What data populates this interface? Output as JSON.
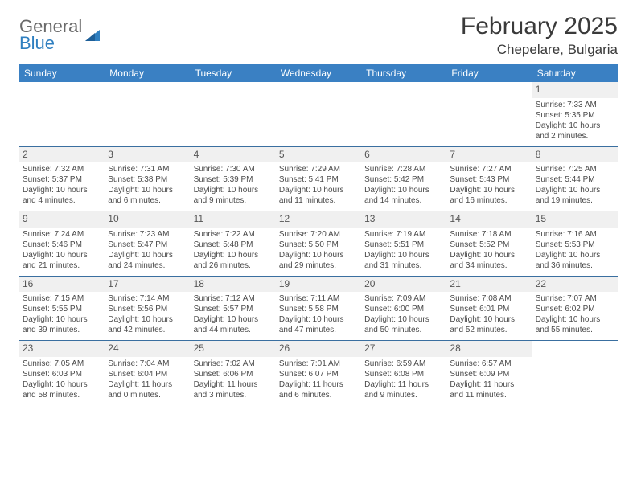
{
  "logo": {
    "text1": "General",
    "text2": "Blue"
  },
  "header": {
    "month_title": "February 2025",
    "location": "Chepelare, Bulgaria"
  },
  "colors": {
    "header_bar": "#3a80c3",
    "header_text": "#ffffff",
    "row_divider": "#3a6fa0",
    "daynum_bg": "#f0f0f0",
    "body_text": "#4a4a4a",
    "logo_gray": "#6a6a6a",
    "logo_blue": "#2f7fc0"
  },
  "weekdays": [
    "Sunday",
    "Monday",
    "Tuesday",
    "Wednesday",
    "Thursday",
    "Friday",
    "Saturday"
  ],
  "weeks": [
    [
      {
        "day": "",
        "sunrise": "",
        "sunset": "",
        "daylight": ""
      },
      {
        "day": "",
        "sunrise": "",
        "sunset": "",
        "daylight": ""
      },
      {
        "day": "",
        "sunrise": "",
        "sunset": "",
        "daylight": ""
      },
      {
        "day": "",
        "sunrise": "",
        "sunset": "",
        "daylight": ""
      },
      {
        "day": "",
        "sunrise": "",
        "sunset": "",
        "daylight": ""
      },
      {
        "day": "",
        "sunrise": "",
        "sunset": "",
        "daylight": ""
      },
      {
        "day": "1",
        "sunrise": "Sunrise: 7:33 AM",
        "sunset": "Sunset: 5:35 PM",
        "daylight": "Daylight: 10 hours and 2 minutes."
      }
    ],
    [
      {
        "day": "2",
        "sunrise": "Sunrise: 7:32 AM",
        "sunset": "Sunset: 5:37 PM",
        "daylight": "Daylight: 10 hours and 4 minutes."
      },
      {
        "day": "3",
        "sunrise": "Sunrise: 7:31 AM",
        "sunset": "Sunset: 5:38 PM",
        "daylight": "Daylight: 10 hours and 6 minutes."
      },
      {
        "day": "4",
        "sunrise": "Sunrise: 7:30 AM",
        "sunset": "Sunset: 5:39 PM",
        "daylight": "Daylight: 10 hours and 9 minutes."
      },
      {
        "day": "5",
        "sunrise": "Sunrise: 7:29 AM",
        "sunset": "Sunset: 5:41 PM",
        "daylight": "Daylight: 10 hours and 11 minutes."
      },
      {
        "day": "6",
        "sunrise": "Sunrise: 7:28 AM",
        "sunset": "Sunset: 5:42 PM",
        "daylight": "Daylight: 10 hours and 14 minutes."
      },
      {
        "day": "7",
        "sunrise": "Sunrise: 7:27 AM",
        "sunset": "Sunset: 5:43 PM",
        "daylight": "Daylight: 10 hours and 16 minutes."
      },
      {
        "day": "8",
        "sunrise": "Sunrise: 7:25 AM",
        "sunset": "Sunset: 5:44 PM",
        "daylight": "Daylight: 10 hours and 19 minutes."
      }
    ],
    [
      {
        "day": "9",
        "sunrise": "Sunrise: 7:24 AM",
        "sunset": "Sunset: 5:46 PM",
        "daylight": "Daylight: 10 hours and 21 minutes."
      },
      {
        "day": "10",
        "sunrise": "Sunrise: 7:23 AM",
        "sunset": "Sunset: 5:47 PM",
        "daylight": "Daylight: 10 hours and 24 minutes."
      },
      {
        "day": "11",
        "sunrise": "Sunrise: 7:22 AM",
        "sunset": "Sunset: 5:48 PM",
        "daylight": "Daylight: 10 hours and 26 minutes."
      },
      {
        "day": "12",
        "sunrise": "Sunrise: 7:20 AM",
        "sunset": "Sunset: 5:50 PM",
        "daylight": "Daylight: 10 hours and 29 minutes."
      },
      {
        "day": "13",
        "sunrise": "Sunrise: 7:19 AM",
        "sunset": "Sunset: 5:51 PM",
        "daylight": "Daylight: 10 hours and 31 minutes."
      },
      {
        "day": "14",
        "sunrise": "Sunrise: 7:18 AM",
        "sunset": "Sunset: 5:52 PM",
        "daylight": "Daylight: 10 hours and 34 minutes."
      },
      {
        "day": "15",
        "sunrise": "Sunrise: 7:16 AM",
        "sunset": "Sunset: 5:53 PM",
        "daylight": "Daylight: 10 hours and 36 minutes."
      }
    ],
    [
      {
        "day": "16",
        "sunrise": "Sunrise: 7:15 AM",
        "sunset": "Sunset: 5:55 PM",
        "daylight": "Daylight: 10 hours and 39 minutes."
      },
      {
        "day": "17",
        "sunrise": "Sunrise: 7:14 AM",
        "sunset": "Sunset: 5:56 PM",
        "daylight": "Daylight: 10 hours and 42 minutes."
      },
      {
        "day": "18",
        "sunrise": "Sunrise: 7:12 AM",
        "sunset": "Sunset: 5:57 PM",
        "daylight": "Daylight: 10 hours and 44 minutes."
      },
      {
        "day": "19",
        "sunrise": "Sunrise: 7:11 AM",
        "sunset": "Sunset: 5:58 PM",
        "daylight": "Daylight: 10 hours and 47 minutes."
      },
      {
        "day": "20",
        "sunrise": "Sunrise: 7:09 AM",
        "sunset": "Sunset: 6:00 PM",
        "daylight": "Daylight: 10 hours and 50 minutes."
      },
      {
        "day": "21",
        "sunrise": "Sunrise: 7:08 AM",
        "sunset": "Sunset: 6:01 PM",
        "daylight": "Daylight: 10 hours and 52 minutes."
      },
      {
        "day": "22",
        "sunrise": "Sunrise: 7:07 AM",
        "sunset": "Sunset: 6:02 PM",
        "daylight": "Daylight: 10 hours and 55 minutes."
      }
    ],
    [
      {
        "day": "23",
        "sunrise": "Sunrise: 7:05 AM",
        "sunset": "Sunset: 6:03 PM",
        "daylight": "Daylight: 10 hours and 58 minutes."
      },
      {
        "day": "24",
        "sunrise": "Sunrise: 7:04 AM",
        "sunset": "Sunset: 6:04 PM",
        "daylight": "Daylight: 11 hours and 0 minutes."
      },
      {
        "day": "25",
        "sunrise": "Sunrise: 7:02 AM",
        "sunset": "Sunset: 6:06 PM",
        "daylight": "Daylight: 11 hours and 3 minutes."
      },
      {
        "day": "26",
        "sunrise": "Sunrise: 7:01 AM",
        "sunset": "Sunset: 6:07 PM",
        "daylight": "Daylight: 11 hours and 6 minutes."
      },
      {
        "day": "27",
        "sunrise": "Sunrise: 6:59 AM",
        "sunset": "Sunset: 6:08 PM",
        "daylight": "Daylight: 11 hours and 9 minutes."
      },
      {
        "day": "28",
        "sunrise": "Sunrise: 6:57 AM",
        "sunset": "Sunset: 6:09 PM",
        "daylight": "Daylight: 11 hours and 11 minutes."
      },
      {
        "day": "",
        "sunrise": "",
        "sunset": "",
        "daylight": ""
      }
    ]
  ]
}
